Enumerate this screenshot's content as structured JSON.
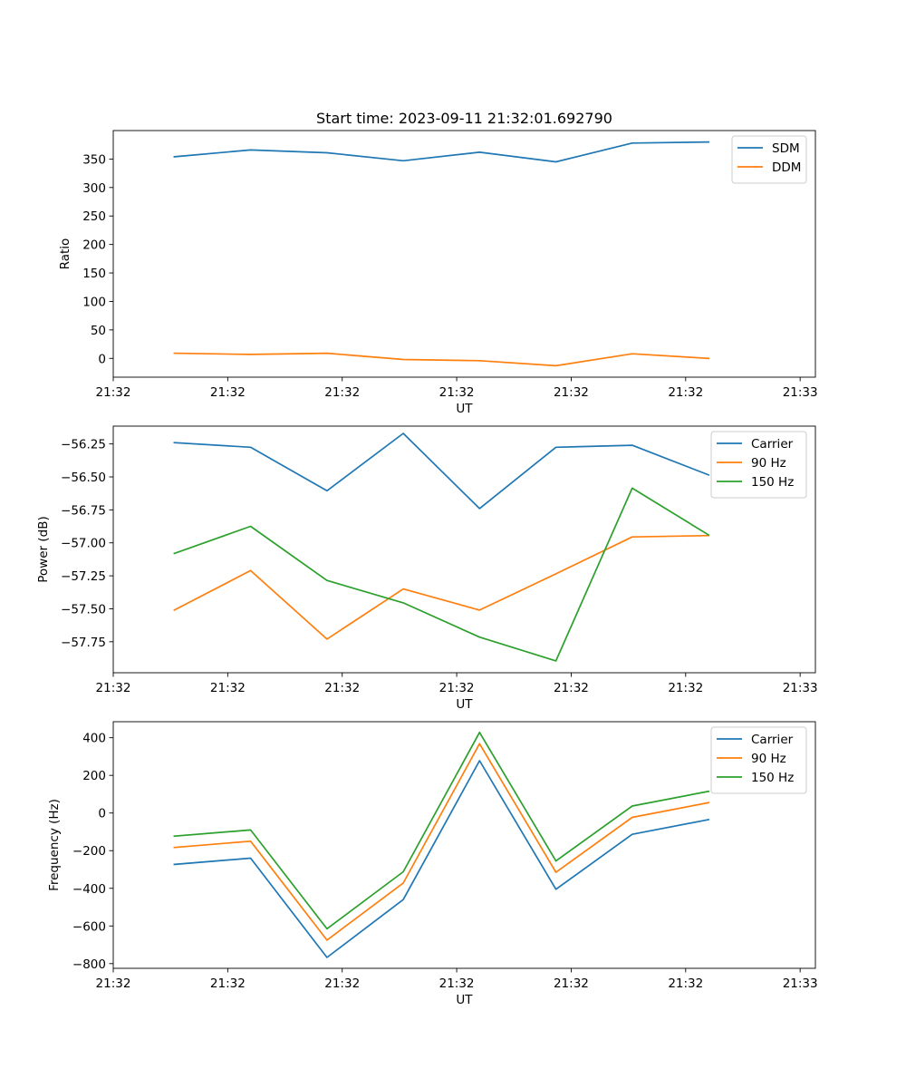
{
  "figure_title": "Start time: 2023-09-11 21:32:01.692790",
  "chart_data": [
    {
      "type": "line",
      "title": "Start time: 2023-09-11 21:32:01.692790",
      "xlabel": "UT",
      "ylabel": "Ratio",
      "x": [
        1,
        2,
        3,
        4,
        5,
        6,
        7,
        8
      ],
      "xlim": [
        0.2,
        9.4
      ],
      "x_ticks": [
        0.2,
        1.7,
        3.2,
        4.7,
        6.2,
        7.7,
        9.2
      ],
      "x_tick_labels": [
        "21:32",
        "21:32",
        "21:32",
        "21:32",
        "21:32",
        "21:32",
        "21:33"
      ],
      "ylim": [
        -33,
        400
      ],
      "y_ticks": [
        0,
        50,
        100,
        150,
        200,
        250,
        300,
        350
      ],
      "y_tick_labels": [
        "0",
        "50",
        "100",
        "150",
        "200",
        "250",
        "300",
        "350"
      ],
      "legend_position": "top-right",
      "series": [
        {
          "name": "SDM",
          "color": "#1f77b4",
          "values": [
            354,
            366,
            361,
            347,
            362,
            345,
            378,
            380
          ]
        },
        {
          "name": "DDM",
          "color": "#ff7f0e",
          "values": [
            9,
            7,
            9,
            -2,
            -4,
            -13,
            8,
            0
          ]
        }
      ]
    },
    {
      "type": "line",
      "title": "",
      "xlabel": "UT",
      "ylabel": "Power (dB)",
      "x": [
        1,
        2,
        3,
        4,
        5,
        6,
        7,
        8
      ],
      "xlim": [
        0.2,
        9.4
      ],
      "x_ticks": [
        0.2,
        1.7,
        3.2,
        4.7,
        6.2,
        7.7,
        9.2
      ],
      "x_tick_labels": [
        "21:32",
        "21:32",
        "21:32",
        "21:32",
        "21:32",
        "21:32",
        "21:33"
      ],
      "ylim": [
        -57.985,
        -56.115
      ],
      "y_ticks": [
        -57.75,
        -57.5,
        -57.25,
        -57.0,
        -56.75,
        -56.5,
        -56.25
      ],
      "y_tick_labels": [
        "−57.75",
        "−57.50",
        "−57.25",
        "−57.00",
        "−56.75",
        "−56.50",
        "−56.25"
      ],
      "legend_position": "top-right",
      "series": [
        {
          "name": "Carrier",
          "color": "#1f77b4",
          "values": [
            -56.24,
            -56.275,
            -56.605,
            -56.17,
            -56.74,
            -56.275,
            -56.26,
            -56.485
          ]
        },
        {
          "name": "90 Hz",
          "color": "#ff7f0e",
          "values": [
            -57.51,
            -57.21,
            -57.73,
            -57.35,
            -57.51,
            -57.235,
            -56.955,
            -56.945
          ]
        },
        {
          "name": "150 Hz",
          "color": "#2ca02c",
          "values": [
            -57.08,
            -56.875,
            -57.285,
            -57.455,
            -57.715,
            -57.895,
            -56.585,
            -56.94
          ]
        }
      ]
    },
    {
      "type": "line",
      "title": "",
      "xlabel": "UT",
      "ylabel": "Frequency (Hz)",
      "x": [
        1,
        2,
        3,
        4,
        5,
        6,
        7,
        8
      ],
      "xlim": [
        0.2,
        9.4
      ],
      "x_ticks": [
        0.2,
        1.7,
        3.2,
        4.7,
        6.2,
        7.7,
        9.2
      ],
      "x_tick_labels": [
        "21:32",
        "21:32",
        "21:32",
        "21:32",
        "21:32",
        "21:32",
        "21:33"
      ],
      "ylim": [
        -825,
        485
      ],
      "y_ticks": [
        -800,
        -600,
        -400,
        -200,
        0,
        200,
        400
      ],
      "y_tick_labels": [
        "−800",
        "−600",
        "−400",
        "−200",
        "0",
        "200",
        "400"
      ],
      "legend_position": "top-right",
      "series": [
        {
          "name": "Carrier",
          "color": "#1f77b4",
          "values": [
            -273,
            -240,
            -767,
            -460,
            278,
            -405,
            -113,
            -35
          ]
        },
        {
          "name": "90 Hz",
          "color": "#ff7f0e",
          "values": [
            -183,
            -150,
            -675,
            -372,
            368,
            -315,
            -23,
            55
          ]
        },
        {
          "name": "150 Hz",
          "color": "#2ca02c",
          "values": [
            -123,
            -90,
            -615,
            -312,
            428,
            -255,
            37,
            115
          ]
        }
      ]
    }
  ]
}
